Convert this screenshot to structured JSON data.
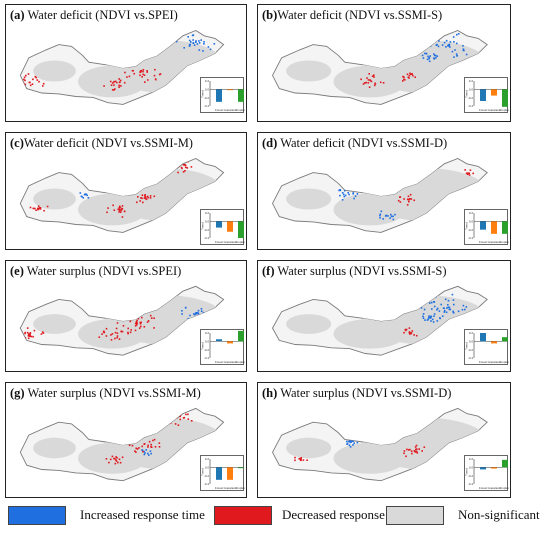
{
  "colors": {
    "increased": "#1f6fe0",
    "decreased": "#e0191f",
    "nonsig": "#d9d9d9",
    "forest": "#1f77b4",
    "grassland": "#ff7f0e",
    "cropland": "#2ca02c"
  },
  "panels": [
    {
      "letter": "(a)",
      "title": "Water deficit (NDVI vs.SPEI)",
      "trend": {
        "forest": -0.3,
        "grassland": -0.02,
        "cropland": -0.3
      }
    },
    {
      "letter": "(b)",
      "title": "Water deficit (NDVI vs.SSMI-S)",
      "trend": {
        "forest": -0.28,
        "grassland": -0.15,
        "cropland": -0.42
      }
    },
    {
      "letter": "(c)",
      "title": "Water deficit (NDVI vs.SSMI-M)",
      "trend": {
        "forest": -0.15,
        "grassland": -0.25,
        "cropland": -0.4
      }
    },
    {
      "letter": "(d)",
      "title": "Water deficit (NDVI vs.SSMI-D)",
      "trend": {
        "forest": -0.2,
        "grassland": -0.3,
        "cropland": -0.3
      }
    },
    {
      "letter": "(e)",
      "title": "Water surplus (NDVI vs.SPEI)",
      "trend": {
        "forest": 0.05,
        "grassland": -0.05,
        "cropland": 0.25
      }
    },
    {
      "letter": "(f)",
      "title": "Water surplus (NDVI vs.SSMI-S)",
      "trend": {
        "forest": 0.2,
        "grassland": -0.05,
        "cropland": 0.1
      }
    },
    {
      "letter": "(g)",
      "title": "Water surplus (NDVI vs.SSMI-M)",
      "trend": {
        "forest": -0.3,
        "grassland": -0.3,
        "cropland": -0.02
      }
    },
    {
      "letter": "(h)",
      "title": "Water surplus (NDVI vs.SSMI-D)",
      "trend": {
        "forest": -0.05,
        "grassland": -0.03,
        "cropland": 0.18
      }
    }
  ],
  "inset": {
    "ylabel": "Trend",
    "categories": [
      "Forest",
      "Grassland",
      "Cropland"
    ],
    "yticks": [
      "0.2",
      "0.0",
      "-0.2",
      "-0.4"
    ]
  },
  "legend": {
    "increased": "Increased response time",
    "decreased": "Decreased response time",
    "nonsig": "Non-significant"
  }
}
